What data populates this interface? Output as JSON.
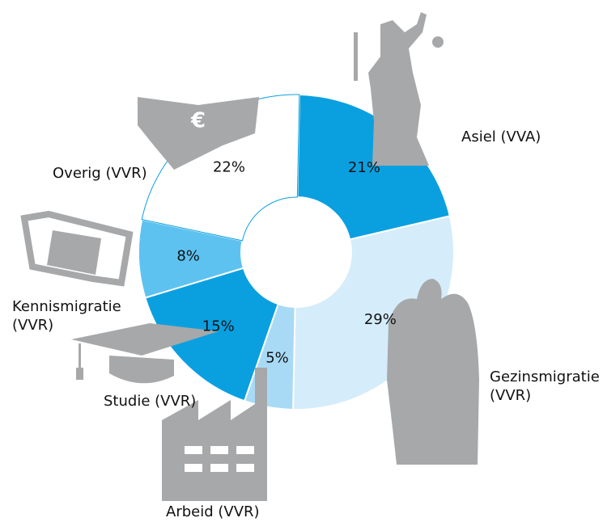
{
  "chart_data": {
    "type": "donut",
    "categories": [
      "Asiel (VVA)",
      "Gezinsmigratie (VVR)",
      "Arbeid (VVR)",
      "Studie (VVR)",
      "Kennismigratie (VVR)",
      "Overig (VVR)"
    ],
    "values": [
      21,
      29,
      5,
      15,
      8,
      22
    ],
    "value_labels": [
      "21%",
      "29%",
      "5%",
      "15%",
      "8%",
      "22%"
    ],
    "colors": [
      "#0aa0e0",
      "#d5ecfa",
      "#a8daf6",
      "#0aa0e0",
      "#5ec2f0",
      "#ffffff"
    ]
  }
}
